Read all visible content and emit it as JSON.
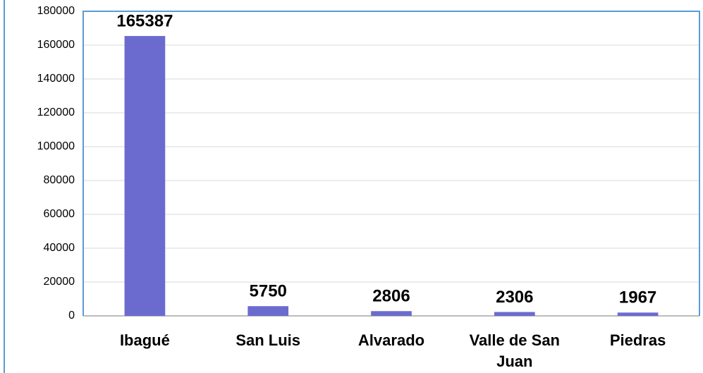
{
  "chart_data": {
    "type": "bar",
    "categories": [
      "Ibagué",
      "San Luis",
      "Alvarado",
      "Valle de San Juan",
      "Piedras"
    ],
    "values": [
      165387,
      5750,
      2806,
      2306,
      1967
    ],
    "color": "#6b6bcf",
    "ylim": [
      0,
      180000
    ],
    "yticks": [
      0,
      20000,
      40000,
      60000,
      80000,
      100000,
      120000,
      140000,
      160000,
      180000
    ],
    "grid": true
  }
}
